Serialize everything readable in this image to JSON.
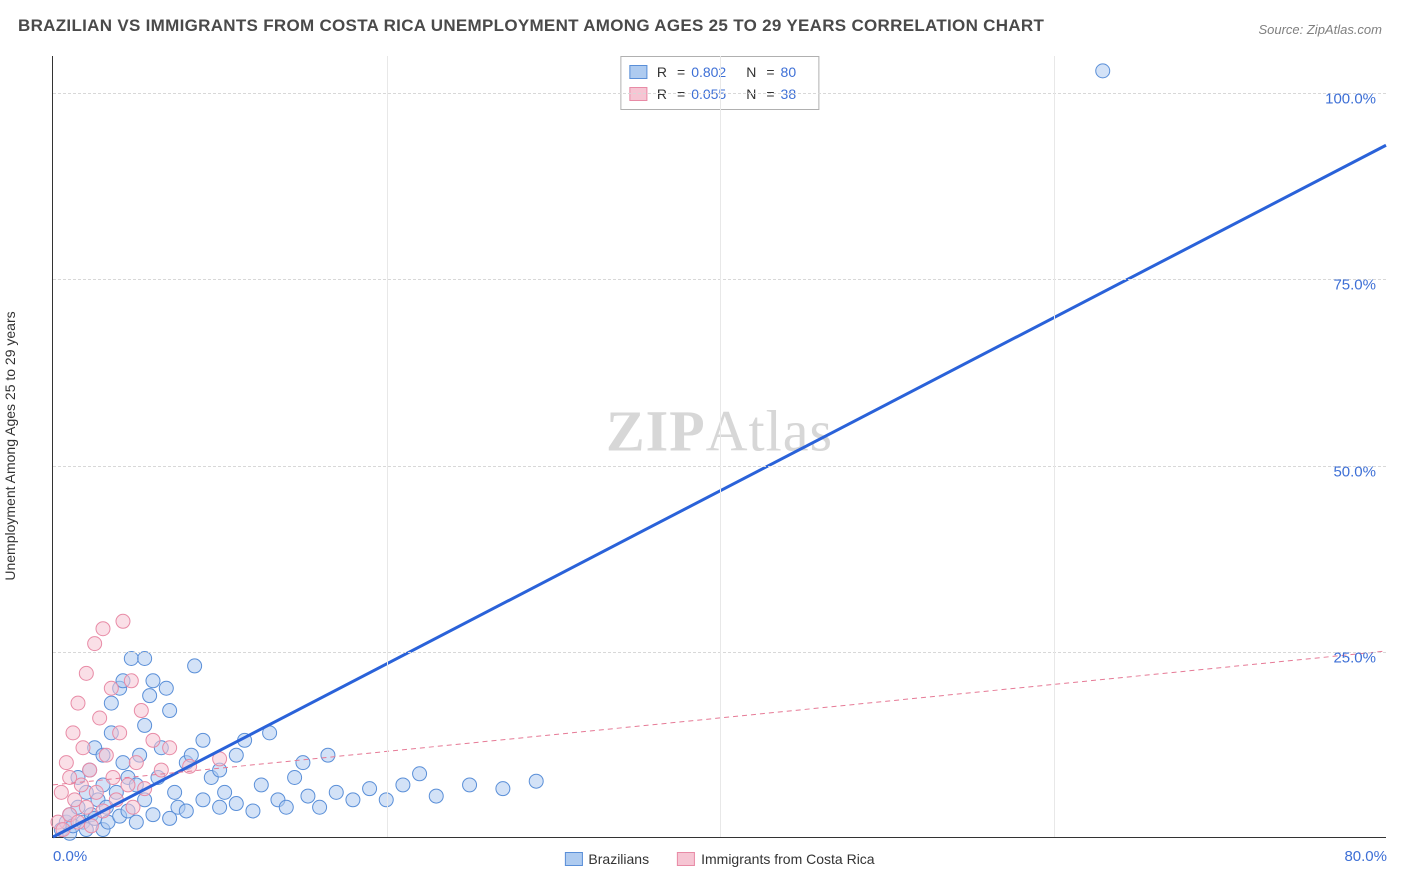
{
  "title": "BRAZILIAN VS IMMIGRANTS FROM COSTA RICA UNEMPLOYMENT AMONG AGES 25 TO 29 YEARS CORRELATION CHART",
  "source_prefix": "Source: ",
  "source_name": "ZipAtlas.com",
  "yaxis_label": "Unemployment Among Ages 25 to 29 years",
  "watermark_bold": "ZIP",
  "watermark_rest": "Atlas",
  "chart": {
    "type": "scatter",
    "xlim": [
      0,
      80
    ],
    "ylim": [
      0,
      105
    ],
    "xtick_start": 0.0,
    "xtick_end": 80.0,
    "yticks": [
      25.0,
      50.0,
      75.0,
      100.0
    ],
    "xgrid_step": 20,
    "grid_color": "#d8d8d8",
    "axis_color": "#333333",
    "background_color": "#ffffff",
    "marker_radius": 7,
    "marker_opacity": 0.55,
    "tick_label_color": "#3d6fd6",
    "tick_fontsize": 15,
    "title_fontsize": 17,
    "title_color": "#4a4a4a"
  },
  "series": [
    {
      "name": "Brazilians",
      "fill": "#aecbf0",
      "stroke": "#5a8fd8",
      "R_label": "R",
      "R": "0.802",
      "N_label": "N",
      "N": "80",
      "trend": {
        "x1": 0,
        "y1": 0,
        "x2": 80,
        "y2": 93,
        "stroke": "#2a62d9",
        "width": 3,
        "dash": ""
      },
      "points": [
        [
          0.5,
          1
        ],
        [
          0.8,
          2
        ],
        [
          1,
          0.5
        ],
        [
          1,
          3
        ],
        [
          1.2,
          1.5
        ],
        [
          1.5,
          4
        ],
        [
          1.5,
          8
        ],
        [
          1.8,
          2
        ],
        [
          2,
          1
        ],
        [
          2,
          6
        ],
        [
          2.2,
          9
        ],
        [
          2.3,
          3
        ],
        [
          2.5,
          2.5
        ],
        [
          2.5,
          12
        ],
        [
          2.7,
          5
        ],
        [
          3,
          1
        ],
        [
          3,
          11
        ],
        [
          3,
          7
        ],
        [
          3.2,
          4
        ],
        [
          3.3,
          2
        ],
        [
          3.5,
          14
        ],
        [
          3.5,
          18
        ],
        [
          3.8,
          6
        ],
        [
          4,
          2.8
        ],
        [
          4,
          20
        ],
        [
          4.2,
          10
        ],
        [
          4.5,
          3.5
        ],
        [
          4.5,
          8
        ],
        [
          4.7,
          24
        ],
        [
          5,
          7
        ],
        [
          5,
          2
        ],
        [
          5.2,
          11
        ],
        [
          5.5,
          15
        ],
        [
          5.5,
          5
        ],
        [
          5.8,
          19
        ],
        [
          6,
          3
        ],
        [
          6,
          21
        ],
        [
          6.3,
          8
        ],
        [
          6.5,
          12
        ],
        [
          7,
          2.5
        ],
        [
          7,
          17
        ],
        [
          7.3,
          6
        ],
        [
          7.5,
          4
        ],
        [
          8,
          10
        ],
        [
          8,
          3.5
        ],
        [
          8.3,
          11
        ],
        [
          8.5,
          23
        ],
        [
          9,
          5
        ],
        [
          9,
          13
        ],
        [
          9.5,
          8
        ],
        [
          10,
          4
        ],
        [
          10,
          9
        ],
        [
          10.3,
          6
        ],
        [
          11,
          11
        ],
        [
          11,
          4.5
        ],
        [
          11.5,
          13
        ],
        [
          12,
          3.5
        ],
        [
          12.5,
          7
        ],
        [
          13,
          14
        ],
        [
          13.5,
          5
        ],
        [
          14,
          4
        ],
        [
          14.5,
          8
        ],
        [
          15,
          10
        ],
        [
          15.3,
          5.5
        ],
        [
          16,
          4
        ],
        [
          16.5,
          11
        ],
        [
          17,
          6
        ],
        [
          18,
          5
        ],
        [
          19,
          6.5
        ],
        [
          20,
          5
        ],
        [
          21,
          7
        ],
        [
          22,
          8.5
        ],
        [
          23,
          5.5
        ],
        [
          25,
          7
        ],
        [
          27,
          6.5
        ],
        [
          29,
          7.5
        ],
        [
          4.2,
          21
        ],
        [
          5.5,
          24
        ],
        [
          6.8,
          20
        ],
        [
          63,
          103
        ]
      ]
    },
    {
      "name": "Immigrants from Costa Rica",
      "fill": "#f6c5d3",
      "stroke": "#e88ba6",
      "R_label": "R",
      "R": "0.055",
      "N_label": "N",
      "N": "38",
      "trend": {
        "x1": 0,
        "y1": 7,
        "x2": 80,
        "y2": 25,
        "stroke": "#e67a96",
        "width": 1,
        "dash": "5,4"
      },
      "points": [
        [
          0.3,
          2
        ],
        [
          0.5,
          6
        ],
        [
          0.6,
          1
        ],
        [
          0.8,
          10
        ],
        [
          1,
          3
        ],
        [
          1,
          8
        ],
        [
          1.2,
          14
        ],
        [
          1.3,
          5
        ],
        [
          1.5,
          2
        ],
        [
          1.5,
          18
        ],
        [
          1.7,
          7
        ],
        [
          1.8,
          12
        ],
        [
          2,
          4
        ],
        [
          2,
          22
        ],
        [
          2.2,
          9
        ],
        [
          2.3,
          1.5
        ],
        [
          2.5,
          26
        ],
        [
          2.6,
          6
        ],
        [
          2.8,
          16
        ],
        [
          3,
          28
        ],
        [
          3,
          3.5
        ],
        [
          3.2,
          11
        ],
        [
          3.5,
          20
        ],
        [
          3.6,
          8
        ],
        [
          3.8,
          5
        ],
        [
          4.2,
          29
        ],
        [
          4,
          14
        ],
        [
          4.5,
          7
        ],
        [
          4.7,
          21
        ],
        [
          4.8,
          4
        ],
        [
          5,
          10
        ],
        [
          5.3,
          17
        ],
        [
          5.5,
          6.5
        ],
        [
          6,
          13
        ],
        [
          6.5,
          9
        ],
        [
          7,
          12
        ],
        [
          8.2,
          9.5
        ],
        [
          10,
          10.5
        ]
      ]
    }
  ],
  "stats_legend": {
    "eq": "="
  },
  "bottom_legend": {
    "items": [
      "Brazilians",
      "Immigrants from Costa Rica"
    ]
  }
}
